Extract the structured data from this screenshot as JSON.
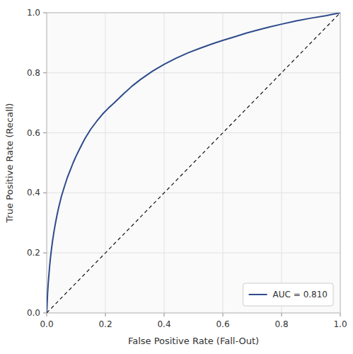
{
  "chart_data": {
    "type": "line",
    "xlabel": "False Positive Rate (Fall-Out)",
    "ylabel": "True Positive Rate (Recall)",
    "series": [
      {
        "name": "AUC = 0.810",
        "color": "#2f4b8c",
        "line_style": "solid",
        "x": [
          0.0,
          0.001,
          0.002,
          0.003,
          0.005,
          0.007,
          0.01,
          0.013,
          0.016,
          0.02,
          0.025,
          0.03,
          0.035,
          0.04,
          0.05,
          0.06,
          0.07,
          0.08,
          0.09,
          0.1,
          0.115,
          0.13,
          0.15,
          0.17,
          0.19,
          0.21,
          0.23,
          0.26,
          0.29,
          0.32,
          0.36,
          0.4,
          0.44,
          0.48,
          0.52,
          0.56,
          0.6,
          0.64,
          0.68,
          0.72,
          0.76,
          0.8,
          0.85,
          0.9,
          0.95,
          1.0
        ],
        "values": [
          0.0,
          0.02,
          0.04,
          0.065,
          0.095,
          0.12,
          0.155,
          0.185,
          0.21,
          0.24,
          0.272,
          0.3,
          0.325,
          0.348,
          0.388,
          0.42,
          0.45,
          0.475,
          0.5,
          0.522,
          0.552,
          0.58,
          0.612,
          0.638,
          0.662,
          0.682,
          0.7,
          0.728,
          0.755,
          0.778,
          0.805,
          0.828,
          0.848,
          0.866,
          0.881,
          0.895,
          0.908,
          0.92,
          0.932,
          0.943,
          0.953,
          0.962,
          0.973,
          0.982,
          0.99,
          1.0
        ]
      },
      {
        "color": "#111111",
        "line_style": "dashed",
        "x": [
          0,
          1
        ],
        "values": [
          0,
          1
        ]
      }
    ],
    "xlim": [
      0.0,
      1.0
    ],
    "ylim": [
      0.0,
      1.0
    ],
    "xticks": [
      {
        "value": 0,
        "label": "0.0"
      },
      0.2,
      0.4,
      0.6,
      0.8,
      {
        "value": 1,
        "label": "1.0"
      }
    ],
    "yticks": [
      {
        "value": 0,
        "label": "0.0"
      },
      0.2,
      0.4,
      0.6,
      0.8,
      {
        "value": 1,
        "label": "1.0"
      }
    ],
    "grid": true,
    "legend": "lower right"
  }
}
